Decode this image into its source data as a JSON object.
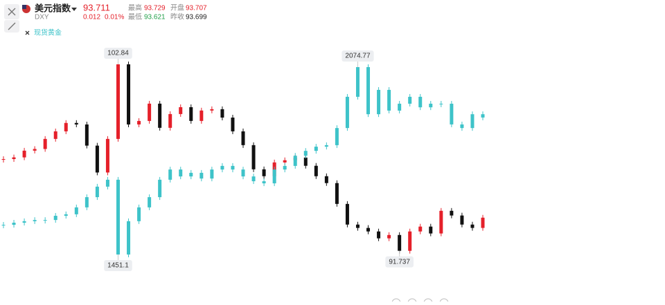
{
  "header": {
    "name": "美元指数",
    "code": "DXY",
    "price": "93.711",
    "change": "0.012",
    "change_pct": "0.01%",
    "high_label": "最高",
    "high": "93.729",
    "open_label": "开盘",
    "open": "93.707",
    "low_label": "最低",
    "low": "93.621",
    "prev_label": "昨收",
    "prev": "93.699"
  },
  "chart_data": {
    "type": "candlestick",
    "ylim": [
      90.2,
      104.2
    ],
    "y2lim": [
      1377.5,
      2160
    ],
    "series": [
      {
        "name": "美元指数",
        "up_color": "#e5202a",
        "down_color": "#111111",
        "values": [
          97.2,
          97.3,
          97.7,
          97.8,
          98.4,
          98.85,
          99.35,
          99.26,
          98.0,
          96.4,
          98.4,
          102.84,
          99.26,
          99.47,
          100.5,
          99.06,
          99.88,
          100.29,
          99.47,
          100.09,
          100.17,
          99.67,
          98.85,
          98.03,
          96.59,
          96.18,
          97.0,
          97.13,
          97.29,
          96.8,
          96.18,
          95.77,
          94.53,
          93.3,
          93.1,
          92.89,
          92.48,
          92.68,
          91.737,
          92.89,
          93.18,
          92.77,
          94.12,
          93.84,
          93.3,
          93.1,
          93.711
        ]
      },
      {
        "name": "现货黄金",
        "axis": "y2",
        "color": "#3ec3c9",
        "values": [
          1550,
          1557,
          1562,
          1566,
          1566,
          1580,
          1585,
          1608,
          1642,
          1677,
          1700,
          1451.1,
          1562,
          1608,
          1642,
          1700,
          1734,
          1711,
          1723,
          1704,
          1734,
          1746,
          1734,
          1711,
          1695,
          1688,
          1734,
          1746,
          1780,
          1796,
          1810,
          1815,
          1872,
          1976,
          2074.77,
          1918,
          1999,
          1930,
          1953,
          1976,
          1941,
          1953,
          1953,
          1884,
          1872,
          1918,
          1907
        ]
      }
    ]
  }
}
